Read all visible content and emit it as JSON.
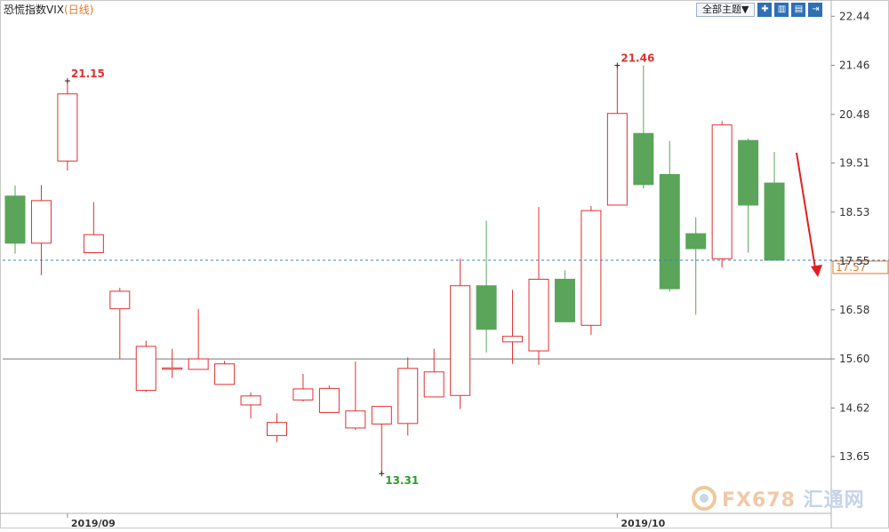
{
  "header": {
    "title": "恐慌指数VIX",
    "period": "(日线)",
    "theme_button": "全部主题▼",
    "tool_icons": [
      "plus-icon",
      "indicator-icon",
      "template-icon",
      "export-icon"
    ]
  },
  "watermark": {
    "brand": "FX678",
    "cn": "汇通网"
  },
  "chart_data": {
    "type": "candlestick",
    "yticks": [
      "22.44",
      "21.46",
      "20.48",
      "19.51",
      "18.53",
      "17.55",
      "16.58",
      "15.60",
      "14.62",
      "13.65"
    ],
    "ylim": [
      12.9,
      22.7
    ],
    "xlabels": [
      {
        "label": "2019/09",
        "index": 2
      },
      {
        "label": "2019/10",
        "index": 23
      }
    ],
    "current_price": "17.57",
    "reference_level": 15.6,
    "annotations": [
      {
        "label": "21.15",
        "index": 2,
        "value": 21.15,
        "color": "#e03030"
      },
      {
        "label": "21.46",
        "index": 23,
        "value": 21.46,
        "color": "#e03030"
      },
      {
        "label": "13.31",
        "index": 14,
        "value": 13.31,
        "color": "#2e9a2e"
      }
    ],
    "colors": {
      "up": "#e03030",
      "down": "#5aa55a",
      "current_line": "#3a7fd0",
      "arrow": "#e02020"
    },
    "candles": [
      {
        "o": 18.85,
        "h": 19.06,
        "l": 17.7,
        "c": 17.91
      },
      {
        "o": 17.91,
        "h": 19.07,
        "l": 17.27,
        "c": 18.76
      },
      {
        "o": 19.55,
        "h": 21.15,
        "l": 19.36,
        "c": 20.89
      },
      {
        "o": 17.72,
        "h": 18.73,
        "l": 17.72,
        "c": 18.08
      },
      {
        "o": 16.6,
        "h": 17.02,
        "l": 15.6,
        "c": 16.95
      },
      {
        "o": 14.97,
        "h": 15.96,
        "l": 14.94,
        "c": 15.85
      },
      {
        "o": 15.42,
        "h": 15.8,
        "l": 15.22,
        "c": 15.42
      },
      {
        "o": 15.39,
        "h": 16.6,
        "l": 15.39,
        "c": 15.6
      },
      {
        "o": 15.09,
        "h": 15.56,
        "l": 15.09,
        "c": 15.5
      },
      {
        "o": 14.68,
        "h": 14.93,
        "l": 14.41,
        "c": 14.86
      },
      {
        "o": 14.07,
        "h": 14.51,
        "l": 13.94,
        "c": 14.33
      },
      {
        "o": 14.78,
        "h": 15.3,
        "l": 14.75,
        "c": 15.0
      },
      {
        "o": 14.53,
        "h": 15.07,
        "l": 14.53,
        "c": 15.01
      },
      {
        "o": 14.22,
        "h": 15.55,
        "l": 14.18,
        "c": 14.56
      },
      {
        "o": 14.3,
        "h": 14.66,
        "l": 13.31,
        "c": 14.65
      },
      {
        "o": 14.31,
        "h": 15.63,
        "l": 14.07,
        "c": 15.41
      },
      {
        "o": 14.84,
        "h": 15.8,
        "l": 14.84,
        "c": 15.34
      },
      {
        "o": 14.87,
        "h": 17.6,
        "l": 14.6,
        "c": 17.06
      },
      {
        "o": 17.06,
        "h": 18.36,
        "l": 15.73,
        "c": 16.19
      },
      {
        "o": 15.94,
        "h": 16.98,
        "l": 15.5,
        "c": 16.05
      },
      {
        "o": 15.76,
        "h": 18.63,
        "l": 15.48,
        "c": 17.19
      },
      {
        "o": 17.19,
        "h": 17.37,
        "l": 16.35,
        "c": 16.34
      },
      {
        "o": 16.27,
        "h": 18.65,
        "l": 16.08,
        "c": 18.56
      },
      {
        "o": 18.67,
        "h": 21.46,
        "l": 18.67,
        "c": 20.5
      },
      {
        "o": 20.1,
        "h": 21.46,
        "l": 19.0,
        "c": 19.08
      },
      {
        "o": 19.28,
        "h": 19.95,
        "l": 16.94,
        "c": 17.0
      },
      {
        "o": 18.1,
        "h": 18.43,
        "l": 16.48,
        "c": 17.8
      },
      {
        "o": 17.6,
        "h": 20.35,
        "l": 17.42,
        "c": 20.27
      },
      {
        "o": 19.96,
        "h": 20.0,
        "l": 17.72,
        "c": 18.67
      },
      {
        "o": 19.11,
        "h": 19.73,
        "l": 17.57,
        "c": 17.57
      }
    ]
  }
}
